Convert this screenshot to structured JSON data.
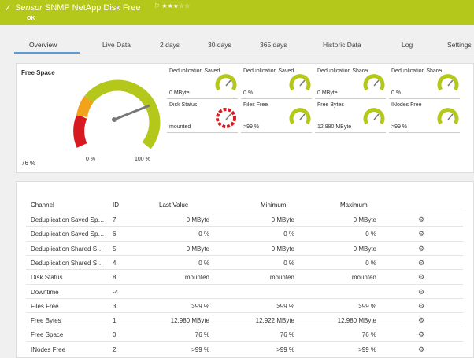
{
  "header": {
    "prefix": "Sensor",
    "name": "SNMP NetApp Disk Free",
    "status": "OK"
  },
  "tabs": [
    "Overview",
    "Live Data",
    "2 days",
    "30 days",
    "365 days",
    "Historic Data",
    "Log",
    "Settings"
  ],
  "gauge": {
    "title": "Free Space",
    "value": "76 %",
    "min": "0 %",
    "max": "100 %"
  },
  "tiles": [
    {
      "label": "Deduplication Saved S…",
      "value": "0 MByte"
    },
    {
      "label": "Deduplication Saved S…",
      "value": "0 %"
    },
    {
      "label": "Deduplication Shared S…",
      "value": "0 MByte"
    },
    {
      "label": "Deduplication Shared …",
      "value": "0 %"
    },
    {
      "label": "Disk Status",
      "value": "mounted"
    },
    {
      "label": "Files Free",
      "value": ">99 %"
    },
    {
      "label": "Free Bytes",
      "value": "12,980 MByte"
    },
    {
      "label": "INodes Free",
      "value": ">99 %"
    }
  ],
  "table": {
    "headers": [
      "Channel",
      "ID",
      "Last Value",
      "Minimum",
      "Maximum"
    ],
    "rows": [
      [
        "Deduplication Saved Sp…",
        "7",
        "0 MByte",
        "0 MByte",
        "0 MByte"
      ],
      [
        "Deduplication Saved Sp…",
        "6",
        "0 %",
        "0 %",
        "0 %"
      ],
      [
        "Deduplication Shared S…",
        "5",
        "0 MByte",
        "0 MByte",
        "0 MByte"
      ],
      [
        "Deduplication Shared S…",
        "4",
        "0 %",
        "0 %",
        "0 %"
      ],
      [
        "Disk Status",
        "8",
        "mounted",
        "mounted",
        "mounted"
      ],
      [
        "Downtime",
        "-4"
      ],
      [
        "Files Free",
        "3",
        ">99 %",
        ">99 %",
        ">99 %"
      ],
      [
        "Free Bytes",
        "1",
        "12,980 MByte",
        "12,922 MByte",
        "12,980 MByte"
      ],
      [
        "Free Space",
        "0",
        "76 %",
        "76 %",
        "76 %"
      ],
      [
        "INodes Free",
        "2",
        ">99 %",
        ">99 %",
        ">99 %"
      ]
    ]
  }
}
